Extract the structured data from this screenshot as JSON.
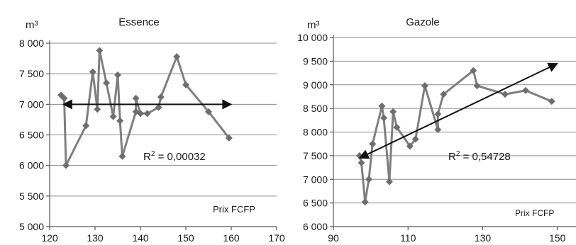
{
  "chart_data": [
    {
      "type": "scatter",
      "title": "Essence",
      "ylabel": "m³",
      "xlabel": "Prix FCFP",
      "xlim": [
        120,
        170
      ],
      "ylim": [
        5000,
        8000
      ],
      "xticks": [
        120,
        130,
        140,
        150,
        160,
        170
      ],
      "yticks": [
        5000,
        5500,
        6000,
        6500,
        7000,
        7500,
        8000
      ],
      "xtick_labels": [
        "120",
        "130",
        "140",
        "150",
        "160",
        "170"
      ],
      "ytick_labels": [
        "5 000",
        "5 500",
        "6 000",
        "6 500",
        "7 000",
        "7 500",
        "8 000"
      ],
      "grid": true,
      "r2_label": "R",
      "r2_sup": "2",
      "r2_value": " = 0,00032",
      "trendline": {
        "x": [
          123,
          160
        ],
        "y": [
          7000,
          7000
        ],
        "style": "double-arrow"
      },
      "series": [
        {
          "x": [
            122.5,
            123.2,
            123.6,
            128.0,
            129.5,
            130.5,
            131.0,
            132.5,
            134.0,
            135.0,
            135.5,
            136.0,
            139.0,
            139.0,
            140.0,
            141.5,
            144.0,
            144.5,
            148.0,
            150.0,
            155.0,
            159.5
          ],
          "y": [
            7150,
            7100,
            6000,
            6650,
            7530,
            6920,
            7880,
            7350,
            6800,
            7480,
            6730,
            6150,
            6880,
            7100,
            6850,
            6850,
            6950,
            7120,
            7780,
            7320,
            6880,
            6450
          ]
        }
      ]
    },
    {
      "type": "scatter",
      "title": "Gazole",
      "ylabel": "m³",
      "xlabel": "Prix FCFP",
      "xlim": [
        90,
        155
      ],
      "ylim": [
        6000,
        10000
      ],
      "xticks": [
        90,
        110,
        130,
        150
      ],
      "yticks": [
        6000,
        6500,
        7000,
        7500,
        8000,
        8500,
        9000,
        9500,
        10000
      ],
      "xtick_labels": [
        "90",
        "110",
        "130",
        "150"
      ],
      "ytick_labels": [
        "6 000",
        "6 500",
        "7 000",
        "7 500",
        "8 000",
        "8 500",
        "9 000",
        "9 500",
        "10 000"
      ],
      "grid": true,
      "r2_label": "R",
      "r2_sup": "2",
      "r2_value": " = 0,54728",
      "trendline": {
        "x": [
          97,
          150
        ],
        "y": [
          7450,
          9450
        ],
        "style": "double-arrow"
      },
      "series": [
        {
          "x": [
            97.0,
            97.5,
            98.5,
            99.5,
            100.5,
            103.0,
            103.5,
            105.0,
            106.0,
            107.0,
            110.5,
            112.0,
            114.5,
            118.0,
            118.0,
            119.5,
            127.5,
            128.5,
            136.0,
            141.5,
            148.5
          ],
          "y": [
            7500,
            7350,
            6520,
            7000,
            7750,
            8550,
            8300,
            6950,
            8430,
            8100,
            7700,
            7850,
            8980,
            8050,
            8380,
            8800,
            9300,
            8980,
            8800,
            8880,
            8650
          ]
        }
      ]
    }
  ]
}
